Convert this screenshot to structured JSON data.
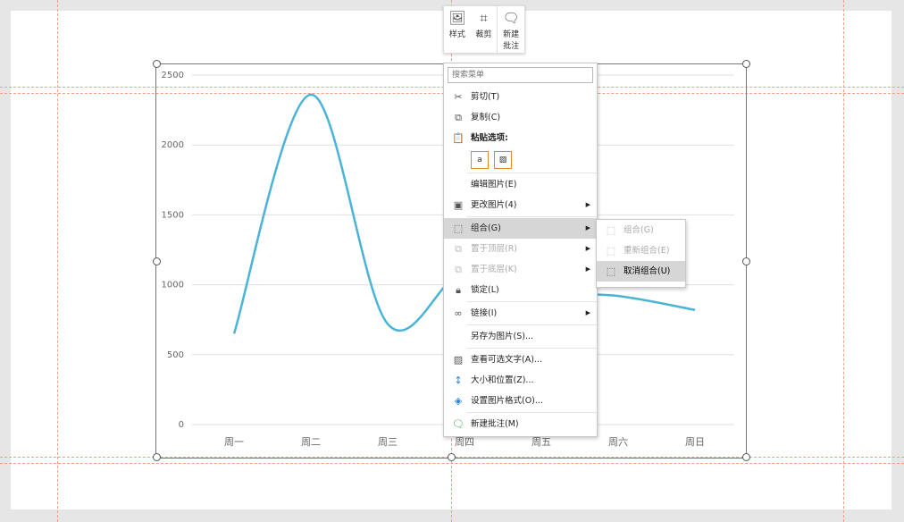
{
  "toolbar": {
    "style": "样式",
    "crop": "裁剪",
    "new_comment": "新建批注"
  },
  "menu": {
    "search_placeholder": "搜索菜单",
    "cut": "剪切(T)",
    "copy": "复制(C)",
    "paste_options": "粘贴选项:",
    "edit_picture": "编辑图片(E)",
    "change_picture": "更改图片(4)",
    "group": "组合(G)",
    "bring_front": "置于顶层(R)",
    "send_back": "置于底层(K)",
    "lock": "锁定(L)",
    "link": "链接(I)",
    "save_as_picture": "另存为图片(S)...",
    "alt_text": "查看可选文字(A)...",
    "size_position": "大小和位置(Z)...",
    "format_picture": "设置图片格式(O)...",
    "new_comment": "新建批注(M)"
  },
  "submenu": {
    "group": "组合(G)",
    "regroup": "重新组合(E)",
    "ungroup": "取消组合(U)"
  },
  "chart_data": {
    "type": "line",
    "categories": [
      "周一",
      "周二",
      "周三",
      "周四",
      "周五",
      "周六",
      "周日"
    ],
    "values": [
      650,
      2360,
      720,
      1100,
      950,
      920,
      820
    ],
    "ylim": [
      0,
      2500
    ],
    "yticks": [
      0,
      500,
      1000,
      1500,
      2000,
      2500
    ],
    "grid": true,
    "line_color": "#4ab3d8",
    "smooth": true
  }
}
